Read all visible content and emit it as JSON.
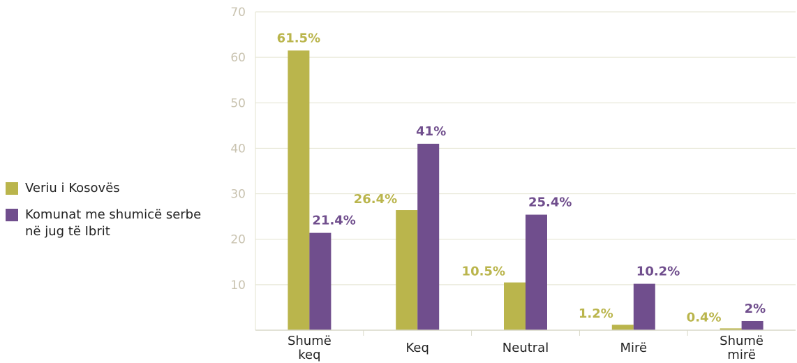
{
  "chart_data": {
    "type": "bar",
    "categories": [
      [
        "Shumë",
        "keq"
      ],
      [
        "Keq"
      ],
      [
        "Neutral"
      ],
      [
        "Mirë"
      ],
      [
        "Shumë",
        "mirë"
      ]
    ],
    "series": [
      {
        "name": "Veriu i Kosovës",
        "color": "#bab54c",
        "values": [
          61.5,
          26.4,
          10.5,
          1.2,
          0.4
        ],
        "labels": [
          "61.5%",
          "26.4%",
          "10.5%",
          "1.2%",
          "0.4%"
        ]
      },
      {
        "name": "Komunat me shumicë serbe në jug të Ibrit",
        "color": "#704e8d",
        "values": [
          21.4,
          41,
          25.4,
          10.2,
          2
        ],
        "labels": [
          "21.4%",
          "41%",
          "25.4%",
          "10.2%",
          "2%"
        ]
      }
    ],
    "ylim": [
      0,
      70
    ],
    "yticks": [
      10,
      20,
      30,
      40,
      50,
      60,
      70
    ],
    "grid": true,
    "legend_position": "left"
  }
}
